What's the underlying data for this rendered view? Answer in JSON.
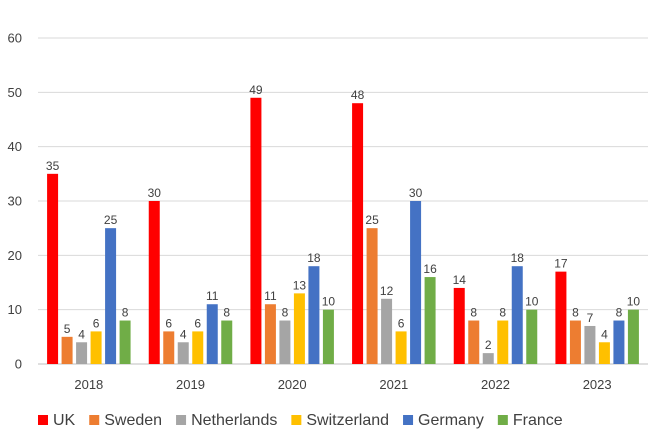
{
  "chart_data": {
    "type": "bar",
    "title": "",
    "xlabel": "",
    "ylabel": "",
    "ylim": [
      0,
      60
    ],
    "yticks": [
      0,
      10,
      20,
      30,
      40,
      50,
      60
    ],
    "grid": true,
    "legend_position": "bottom",
    "categories": [
      "2018",
      "2019",
      "2020",
      "2021",
      "2022",
      "2023"
    ],
    "series": [
      {
        "name": "UK",
        "color": "#ff0000",
        "values": [
          35,
          30,
          49,
          48,
          14,
          17
        ]
      },
      {
        "name": "Sweden",
        "color": "#ed7d31",
        "values": [
          5,
          6,
          11,
          25,
          8,
          8
        ]
      },
      {
        "name": "Netherlands",
        "color": "#a5a5a5",
        "values": [
          4,
          4,
          8,
          12,
          2,
          7
        ]
      },
      {
        "name": "Switzerland",
        "color": "#ffc000",
        "values": [
          6,
          6,
          13,
          6,
          8,
          4
        ]
      },
      {
        "name": "Germany",
        "color": "#4472c4",
        "values": [
          25,
          11,
          18,
          30,
          18,
          8
        ]
      },
      {
        "name": "France",
        "color": "#70ad47",
        "values": [
          8,
          8,
          10,
          16,
          10,
          10
        ]
      }
    ]
  }
}
